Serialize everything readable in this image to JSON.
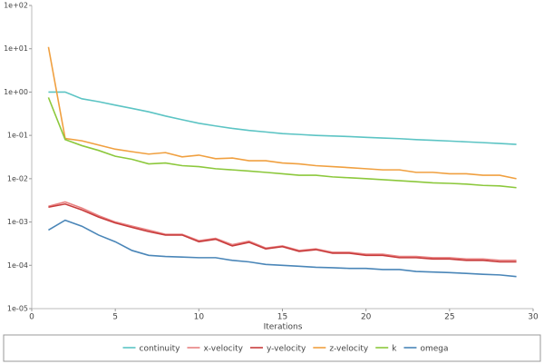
{
  "chart_data": {
    "type": "line",
    "xlabel": "Iterations",
    "yscale": "log",
    "grid": false,
    "xlim": [
      0,
      30
    ],
    "xticks": [
      0,
      5,
      10,
      15,
      20,
      25,
      30
    ],
    "ylim": [
      1e-05,
      100
    ],
    "yticks": [
      {
        "value": 100,
        "label": "1e+02"
      },
      {
        "value": 10,
        "label": "1e+01"
      },
      {
        "value": 1,
        "label": "1e+00"
      },
      {
        "value": 0.1,
        "label": "1e-01"
      },
      {
        "value": 0.01,
        "label": "1e-02"
      },
      {
        "value": 0.001,
        "label": "1e-03"
      },
      {
        "value": 0.0001,
        "label": "1e-04"
      },
      {
        "value": 1e-05,
        "label": "1e-05"
      }
    ],
    "x": [
      1,
      2,
      3,
      4,
      5,
      6,
      7,
      8,
      9,
      10,
      11,
      12,
      13,
      14,
      15,
      16,
      17,
      18,
      19,
      20,
      21,
      22,
      23,
      24,
      25,
      26,
      27,
      28,
      29
    ],
    "series": [
      {
        "name": "continuity",
        "color": "#5cc4c4",
        "values": [
          1.0,
          1.0,
          0.7,
          0.6,
          0.5,
          0.42,
          0.35,
          0.28,
          0.23,
          0.19,
          0.165,
          0.145,
          0.13,
          0.12,
          0.11,
          0.105,
          0.1,
          0.097,
          0.094,
          0.09,
          0.087,
          0.084,
          0.08,
          0.077,
          0.074,
          0.071,
          0.068,
          0.065,
          0.062
        ]
      },
      {
        "name": "x-velocity",
        "color": "#e88080",
        "values": [
          0.0023,
          0.0029,
          0.0021,
          0.0014,
          0.001,
          0.0008,
          0.00065,
          0.00052,
          0.00052,
          0.00037,
          0.00042,
          0.0003,
          0.00036,
          0.00025,
          0.00028,
          0.00022,
          0.00024,
          0.0002,
          0.0002,
          0.00018,
          0.00018,
          0.00016,
          0.00016,
          0.00015,
          0.00015,
          0.00014,
          0.00014,
          0.00013,
          0.00013
        ]
      },
      {
        "name": "y-velocity",
        "color": "#c83c3c",
        "values": [
          0.0022,
          0.0026,
          0.0019,
          0.0013,
          0.00095,
          0.00075,
          0.0006,
          0.0005,
          0.0005,
          0.00035,
          0.0004,
          0.00028,
          0.00034,
          0.00024,
          0.00027,
          0.00021,
          0.00023,
          0.00019,
          0.00019,
          0.00017,
          0.00017,
          0.00015,
          0.00015,
          0.00014,
          0.00014,
          0.00013,
          0.00013,
          0.00012,
          0.00012
        ]
      },
      {
        "name": "z-velocity",
        "color": "#f0a040",
        "values": [
          11,
          0.085,
          0.075,
          0.06,
          0.048,
          0.042,
          0.037,
          0.04,
          0.032,
          0.035,
          0.029,
          0.03,
          0.026,
          0.026,
          0.023,
          0.022,
          0.02,
          0.019,
          0.018,
          0.017,
          0.016,
          0.016,
          0.014,
          0.014,
          0.013,
          0.013,
          0.012,
          0.012,
          0.01
        ]
      },
      {
        "name": "k",
        "color": "#8cc83c",
        "values": [
          0.75,
          0.08,
          0.058,
          0.045,
          0.033,
          0.028,
          0.022,
          0.023,
          0.02,
          0.019,
          0.017,
          0.016,
          0.015,
          0.014,
          0.013,
          0.012,
          0.012,
          0.011,
          0.0105,
          0.01,
          0.0095,
          0.009,
          0.0085,
          0.008,
          0.0078,
          0.0075,
          0.007,
          0.0068,
          0.0062
        ]
      },
      {
        "name": "omega",
        "color": "#4a86b8",
        "values": [
          0.00065,
          0.0011,
          0.0008,
          0.0005,
          0.00035,
          0.00022,
          0.00017,
          0.00016,
          0.000155,
          0.00015,
          0.00015,
          0.00013,
          0.00012,
          0.000105,
          0.0001,
          9.5e-05,
          9e-05,
          8.8e-05,
          8.5e-05,
          8.5e-05,
          8e-05,
          8e-05,
          7.2e-05,
          7e-05,
          6.8e-05,
          6.5e-05,
          6.2e-05,
          6e-05,
          5.5e-05
        ]
      }
    ]
  }
}
